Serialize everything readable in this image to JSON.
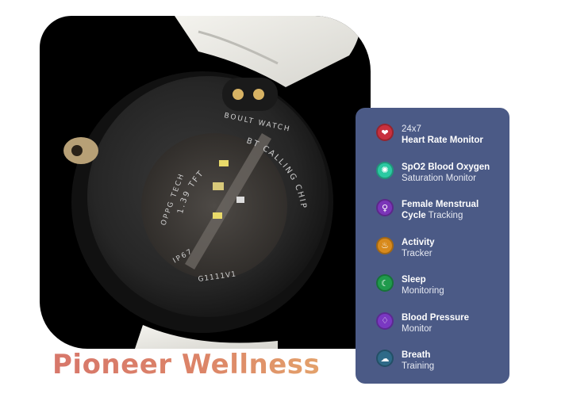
{
  "headline": "Pioneer Wellness",
  "watch": {
    "case_text_1": "BOULT WATCH",
    "case_text_2": "1.39 TFT",
    "case_text_3": "BT CALLING CHIP",
    "case_text_4": "OPPG TECH",
    "case_text_5": "IP67",
    "case_text_6": "G1111V1"
  },
  "features": [
    {
      "icon": "heart-icon",
      "color": "#c8303e",
      "bold": "",
      "regular_1": "24x7",
      "bold_2": "Heart Rate Monitor",
      "regular_2": ""
    },
    {
      "icon": "oxygen-drop-icon",
      "color": "#2bc9a2",
      "bold": "SpO2 Blood Oxygen",
      "regular_1": "",
      "bold_2": "",
      "regular_2": "Saturation Monitor"
    },
    {
      "icon": "female-cycle-icon",
      "color": "#7b35b8",
      "bold": "Female Menstrual",
      "regular_1": "",
      "bold_2": "Cycle",
      "regular_2": " Tracking"
    },
    {
      "icon": "activity-icon",
      "color": "#d88a1c",
      "bold": "Activity",
      "regular_1": "",
      "bold_2": "",
      "regular_2": "Tracker"
    },
    {
      "icon": "sleep-moon-icon",
      "color": "#1f9a4c",
      "bold": "Sleep",
      "regular_1": "",
      "bold_2": "",
      "regular_2": "Monitoring"
    },
    {
      "icon": "blood-pressure-icon",
      "color": "#7a38c2",
      "bold": "Blood Pressure",
      "regular_1": "",
      "bold_2": "",
      "regular_2": "Monitor"
    },
    {
      "icon": "breath-icon",
      "color": "#2f6a88",
      "bold": "Breath",
      "regular_1": "",
      "bold_2": "",
      "regular_2": "Training"
    }
  ]
}
